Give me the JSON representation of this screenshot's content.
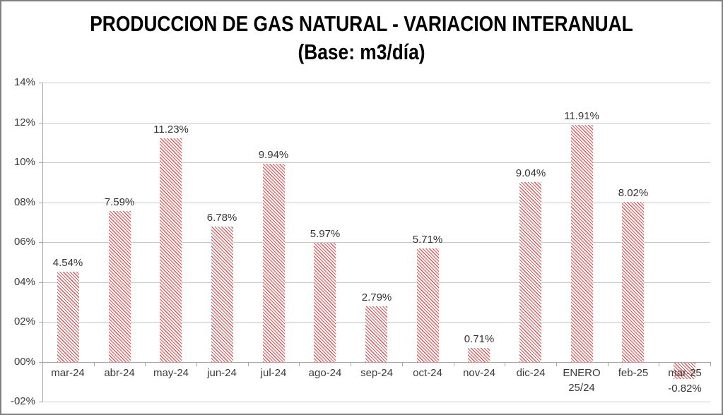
{
  "window": {
    "background": "#ffffff",
    "border_color": "#7f7f7f"
  },
  "chart_data": {
    "type": "bar",
    "title": "PRODUCCION DE GAS NATURAL - VARIACION INTERANUAL",
    "subtitle": "(Base: m3/día)",
    "xlabel": "",
    "ylabel": "",
    "ylim": [
      -2,
      14
    ],
    "y_tick_step": 2,
    "grid": true,
    "legend": "none",
    "bar_style": {
      "pattern": "thin-diagonal-hatch",
      "hatch_line_color": "#e05858",
      "background": "#ffffff"
    },
    "colors": {
      "gridline": "#c9c9c9",
      "axis": "#a6a6a6",
      "label_text": "#3b3b3b",
      "title_text": "#000000"
    },
    "y_tick_values": [
      14,
      12,
      10,
      8,
      6,
      4,
      2,
      0,
      -2
    ],
    "y_tick_labels": [
      "14%",
      "12%",
      "10%",
      "08%",
      "06%",
      "04%",
      "02%",
      "00%",
      "-02%"
    ],
    "categories": [
      "mar-24",
      "abr-24",
      "may-24",
      "jun-24",
      "jul-24",
      "ago-24",
      "sep-24",
      "oct-24",
      "nov-24",
      "dic-24",
      "ENERO\n25/24",
      "feb-25",
      "mar-25"
    ],
    "values": [
      4.54,
      7.59,
      11.23,
      6.78,
      9.94,
      5.97,
      2.79,
      5.71,
      0.71,
      9.04,
      11.91,
      8.02,
      -0.82
    ],
    "data_labels": [
      "4.54%",
      "7.59%",
      "11.23%",
      "6.78%",
      "9.94%",
      "5.97%",
      "2.79%",
      "5.71%",
      "0.71%",
      "9.04%",
      "11.91%",
      "8.02%",
      "-0.82%"
    ]
  }
}
